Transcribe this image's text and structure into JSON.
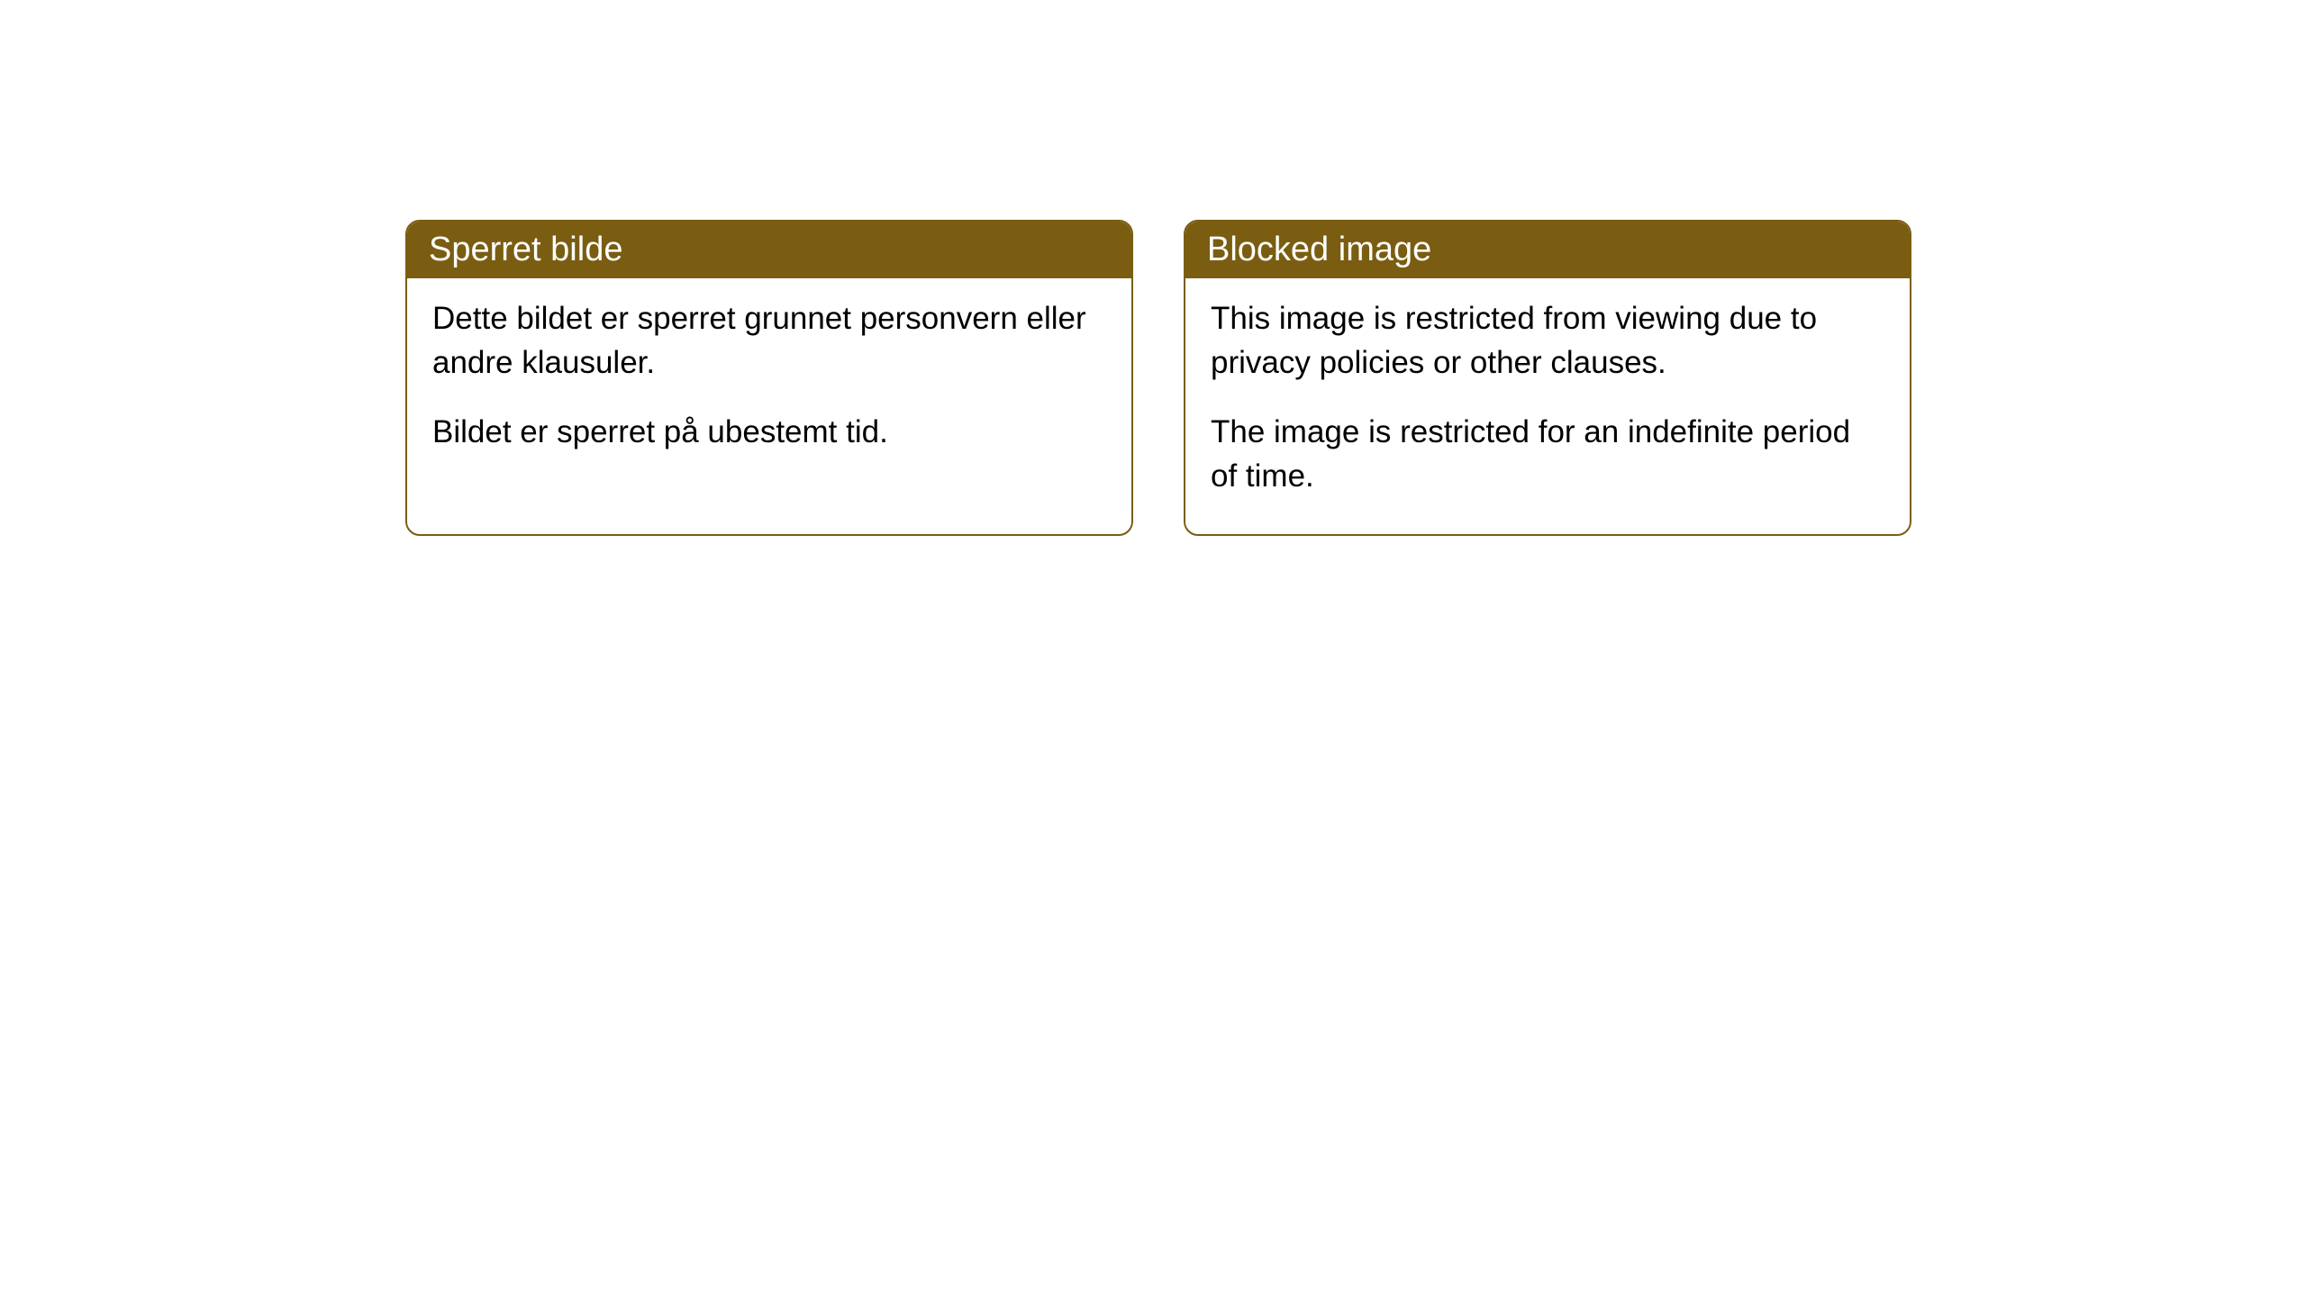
{
  "cards": [
    {
      "title": "Sperret bilde",
      "paragraph1": "Dette bildet er sperret grunnet personvern eller andre klausuler.",
      "paragraph2": "Bildet er sperret på ubestemt tid."
    },
    {
      "title": "Blocked image",
      "paragraph1": "This image is restricted from viewing due to privacy policies or other clauses.",
      "paragraph2": "The image is restricted for an indefinite period of time."
    }
  ],
  "styling": {
    "header_background_color": "#7a5d11",
    "header_text_color": "#ffffff",
    "border_color": "#7a5d11",
    "body_text_color": "#000000",
    "body_background_color": "#ffffff",
    "border_radius": 16,
    "header_fontsize": 38,
    "body_fontsize": 35
  }
}
